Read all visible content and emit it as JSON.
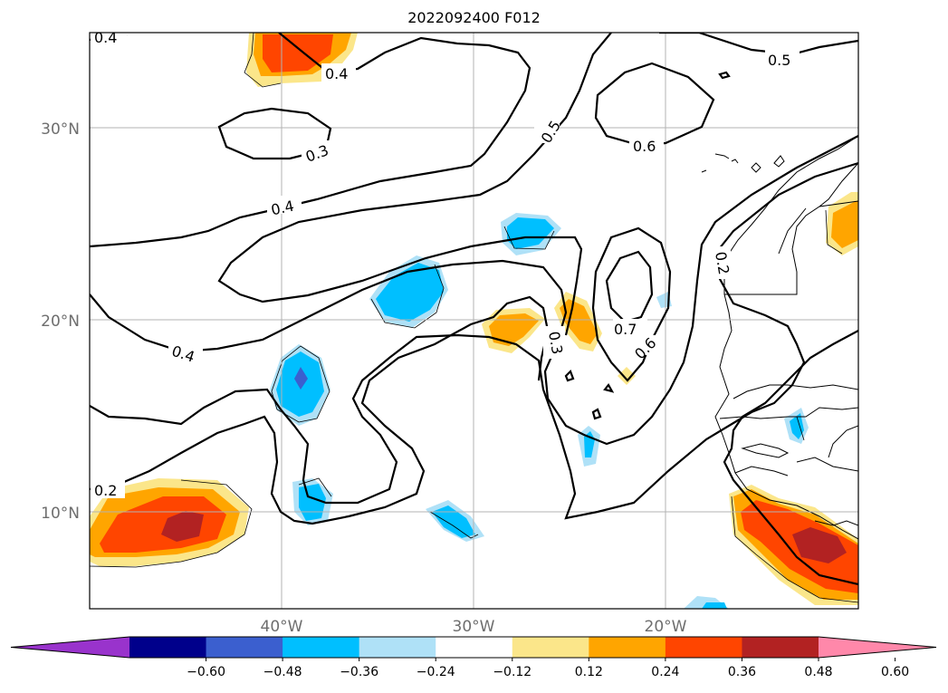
{
  "title": "2022092400 F012",
  "map": {
    "lat_ticks": [
      "30°N",
      "20°N",
      "10°N"
    ],
    "lon_ticks": [
      "40°W",
      "30°W",
      "20°W"
    ],
    "gridlines": true
  },
  "contour_labels": [
    "0.4",
    "0.4",
    "0.3",
    "0.4",
    "0.5",
    "0.6",
    "0.5",
    "0.4",
    "0.2",
    "0.3",
    "0.7",
    "0.6",
    "0.2"
  ],
  "colorbar": {
    "ticks": [
      "−0.60",
      "−0.48",
      "−0.36",
      "−0.24",
      "−0.12",
      "0.12",
      "0.24",
      "0.36",
      "0.48",
      "0.60"
    ],
    "colors": [
      "#9933cc",
      "#00008b",
      "#3b5fcf",
      "#00bfff",
      "#afe1f7",
      "#ffffff",
      "#fbe68a",
      "#ffa500",
      "#ff4500",
      "#b22222",
      "#ff88aa"
    ],
    "extend": "both"
  }
}
